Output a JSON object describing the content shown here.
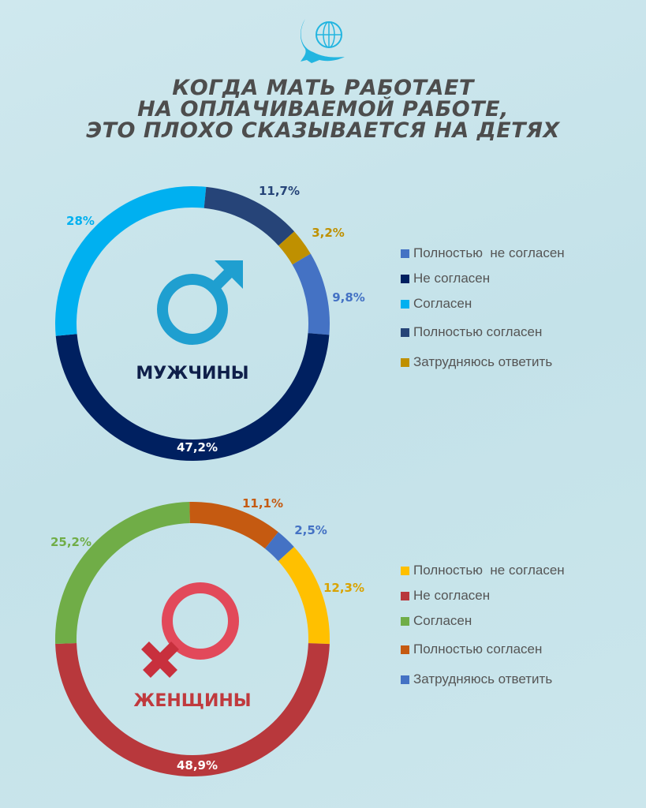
{
  "title": [
    "КОГДА МАТЬ РАБОТАЕТ",
    "НА ОПЛАЧИВАЕМОЙ РАБОТЕ,",
    "ЭТО ПЛОХО СКАЗЫВАЕТСЯ НА ДЕТЯХ"
  ],
  "chart_data": [
    {
      "type": "pie",
      "title": "МУЖЧИНЫ",
      "categories": [
        "Полностью не согласен",
        "Не согласен",
        "Согласен",
        "Полностью согласен",
        "Затрудняюсь ответить"
      ],
      "values": [
        9.8,
        47.2,
        28,
        11.7,
        3.2
      ],
      "labels": [
        "9,8%",
        "47,2%",
        "28%",
        "11,7%",
        "3,2%"
      ],
      "colors": [
        "#4472c4",
        "#002060",
        "#00b0f0",
        "#264478",
        "#bf9000"
      ],
      "legend_labels": [
        "Полностью  не согласен",
        "Не согласен",
        "Согласен",
        "Полностью согласен",
        "Затрудняюсь ответить"
      ],
      "legend": "right",
      "center_color": "#1f9fd0"
    },
    {
      "type": "pie",
      "title": "ЖЕНЩИНЫ",
      "categories": [
        "Полностью не согласен",
        "Не согласен",
        "Согласен",
        "Полностью согласен",
        "Затрудняюсь ответить"
      ],
      "values": [
        12.3,
        48.9,
        25.2,
        11.1,
        2.5
      ],
      "labels": [
        "12,3%",
        "48,9%",
        "25,2%",
        "11,1%",
        "2,5%"
      ],
      "colors": [
        "#ffc000",
        "#b8383c",
        "#70ad47",
        "#c55a11",
        "#4472c4"
      ],
      "legend_labels": [
        "Полностью  не согласен",
        "Не согласен",
        "Согласен",
        "Полностью согласен",
        "Затрудняюсь ответить"
      ],
      "legend": "right",
      "center_color": "#c8303d"
    }
  ]
}
